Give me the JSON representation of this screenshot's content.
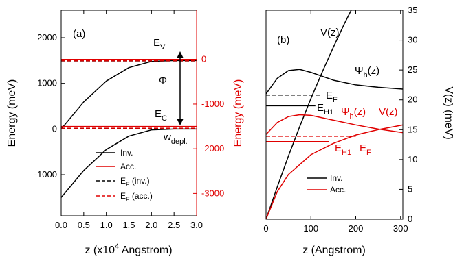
{
  "chart_data": [
    {
      "panel": "(a)",
      "type": "line",
      "xlabel": "z (x10",
      "xlabel_sup": "4",
      "xlabel_tail": " Angstrom)",
      "ylabel_left": "Energy (meV)",
      "ylabel_right": "Energy (meV)",
      "xlim": [
        0,
        3.0
      ],
      "ylim_left": [
        -1900,
        2600
      ],
      "ylim_right": [
        -3500,
        1100
      ],
      "x_ticks": [
        "0.0",
        "0.5",
        "1.0",
        "1.5",
        "2.0",
        "2.5",
        "3.0"
      ],
      "y_ticks_left": [
        "-1000",
        "0",
        "1000",
        "2000"
      ],
      "y_ticks_right": [
        "-3000",
        "-2000",
        "-1000",
        "0"
      ],
      "series": [
        {
          "name": "Inv.",
          "color": "#000000",
          "dash": "solid",
          "axis": "left",
          "x": [
            0,
            0.5,
            1.0,
            1.5,
            2.0,
            2.5,
            2.65,
            3.0
          ],
          "y": [
            0,
            593,
            1050,
            1345,
            1481,
            1500,
            1500,
            1500
          ]
        },
        {
          "name": "Inv.",
          "color": "#000000",
          "dash": "solid",
          "axis": "left",
          "x": [
            0,
            0.5,
            1.0,
            1.5,
            2.0,
            2.5,
            2.65,
            3.0
          ],
          "y": [
            -1500,
            -907,
            -450,
            -155,
            -19,
            0,
            0,
            0
          ]
        },
        {
          "name": "Acc.",
          "color": "#e00000",
          "dash": "solid",
          "axis": "right",
          "x": [
            0,
            3.0
          ],
          "y": [
            0,
            0
          ]
        },
        {
          "name": "Acc.",
          "color": "#e00000",
          "dash": "solid",
          "axis": "right",
          "x": [
            0,
            3.0
          ],
          "y": [
            -1500,
            -1500
          ]
        },
        {
          "name": "E_F (inv.)",
          "color": "#000000",
          "dash": "dashed",
          "axis": "left",
          "x": [
            0,
            3.0
          ],
          "y": [
            1490,
            1490
          ]
        },
        {
          "name": "E_F (inv.)",
          "color": "#000000",
          "dash": "dashed",
          "axis": "left",
          "x": [
            0,
            3.0
          ],
          "y": [
            5,
            5
          ]
        },
        {
          "name": "E_F (acc.)",
          "color": "#e00000",
          "dash": "dashed",
          "axis": "right",
          "x": [
            0,
            3.0
          ],
          "y": [
            -30,
            -30
          ]
        },
        {
          "name": "E_F (acc.)",
          "color": "#e00000",
          "dash": "dashed",
          "axis": "right",
          "x": [
            0,
            3.0
          ],
          "y": [
            -1540,
            -1540
          ]
        }
      ],
      "annotations": {
        "ev": "E",
        "ev_sub": "V",
        "ec": "E",
        "ec_sub": "C",
        "phi": "Φ",
        "wdepl": "w",
        "wdepl_sub": "depl."
      },
      "legend": [
        {
          "label": "Inv.",
          "color": "#000000",
          "dash": "solid"
        },
        {
          "label": "Acc.",
          "color": "#e00000",
          "dash": "solid"
        },
        {
          "label": "E",
          "sub": "F",
          "tail": " (inv.)",
          "color": "#000000",
          "dash": "dashed"
        },
        {
          "label": "E",
          "sub": "F",
          "tail": " (acc.)",
          "color": "#e00000",
          "dash": "dashed"
        }
      ],
      "legend_placement": "bottom-right"
    },
    {
      "panel": "(b)",
      "type": "line",
      "xlabel": "z (Angstrom)",
      "ylabel_right": "V(z) (meV)",
      "xlim": [
        0,
        305
      ],
      "ylim_right": [
        0,
        35
      ],
      "x_ticks": [
        "0",
        "100",
        "200",
        "300"
      ],
      "y_ticks_right": [
        "0",
        "5",
        "10",
        "15",
        "20",
        "25",
        "30",
        "35"
      ],
      "series": [
        {
          "name": "Inv. V(z)",
          "color": "#000000",
          "dash": "solid",
          "x": [
            0,
            25,
            50,
            75,
            100,
            125,
            150,
            175,
            200
          ],
          "y": [
            0,
            5.4,
            10.6,
            15.5,
            20.2,
            24.6,
            28.8,
            32.8,
            36.5
          ]
        },
        {
          "name": "Inv. Ψh(z)",
          "color": "#000000",
          "dash": "solid",
          "x": [
            0,
            25,
            50,
            75,
            100,
            150,
            200,
            250,
            305
          ],
          "y": [
            21,
            23.6,
            24.9,
            25.1,
            24.6,
            23.3,
            22.5,
            22.1,
            21.8
          ]
        },
        {
          "name": "Inv. EH1",
          "color": "#000000",
          "dash": "solid",
          "x": [
            0,
            110
          ],
          "y": [
            19,
            19
          ]
        },
        {
          "name": "Inv. EF",
          "color": "#000000",
          "dash": "dashed",
          "x": [
            0,
            120
          ],
          "y": [
            20.8,
            20.8
          ]
        },
        {
          "name": "Acc. V(z)",
          "color": "#e00000",
          "dash": "solid",
          "x": [
            0,
            25,
            50,
            100,
            150,
            200,
            250,
            305
          ],
          "y": [
            0,
            4.6,
            7.5,
            10.8,
            12.7,
            14.1,
            15.0,
            15.8
          ]
        },
        {
          "name": "Acc. Ψh(z)",
          "color": "#e00000",
          "dash": "solid",
          "x": [
            0,
            25,
            50,
            75,
            100,
            150,
            200,
            250,
            305
          ],
          "y": [
            14.2,
            16.2,
            17.2,
            17.5,
            17.4,
            16.6,
            15.8,
            15.1,
            14.5
          ]
        },
        {
          "name": "Acc. EH1",
          "color": "#e00000",
          "dash": "solid",
          "x": [
            0,
            140
          ],
          "y": [
            13.0,
            13.0
          ]
        },
        {
          "name": "Acc. EF",
          "color": "#e00000",
          "dash": "dashed",
          "x": [
            0,
            200
          ],
          "y": [
            13.9,
            13.9
          ]
        }
      ],
      "annotations": {
        "vz_black": "V(z)",
        "psi_black": "Ψ",
        "psi_black_sub": "h",
        "psi_black_tail": "(z)",
        "ef_black": "E",
        "ef_black_sub": "F",
        "eh1_black": "E",
        "eh1_black_sub": "H1",
        "psi_red": "Ψ",
        "psi_red_sub": "h",
        "psi_red_tail": "(z)",
        "vz_red": "V(z)",
        "eh1_red": "E",
        "eh1_red_sub": "H1",
        "ef_red": "E",
        "ef_red_sub": "F"
      },
      "legend": [
        {
          "label": "Inv.",
          "color": "#000000"
        },
        {
          "label": "Acc.",
          "color": "#e00000"
        }
      ],
      "legend_placement": "bottom-center"
    }
  ]
}
